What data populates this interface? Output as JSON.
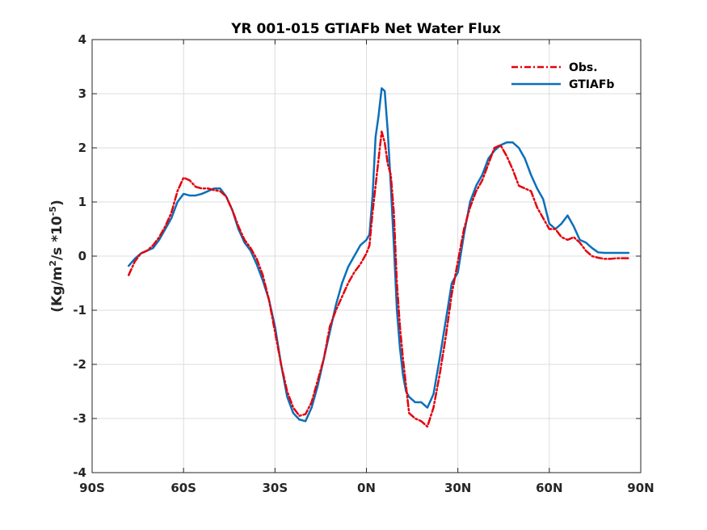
{
  "chart_data": {
    "type": "line",
    "title": "YR 001-015 GTIAFb  Net Water Flux",
    "ylabel_parts": [
      "(Kg/m",
      "2",
      "/s *10",
      "-5",
      ")"
    ],
    "xlabel": "",
    "xlim": [
      -90,
      90
    ],
    "ylim": [
      -4,
      4
    ],
    "grid": true,
    "legend_position": "top-right",
    "x_ticks": [
      -90,
      -60,
      -30,
      0,
      30,
      60,
      90
    ],
    "x_tick_labels": [
      "90S",
      "60S",
      "30S",
      "0N",
      "30N",
      "60N",
      "90N"
    ],
    "y_ticks": [
      -4,
      -3,
      -2,
      -1,
      0,
      1,
      2,
      3,
      4
    ],
    "y_tick_labels": [
      "-4",
      "-3",
      "-2",
      "-1",
      "0",
      "1",
      "2",
      "3",
      "4"
    ],
    "series": [
      {
        "name": "Obs.",
        "color": "#e6000a",
        "dash": "8,3,2,3",
        "x": [
          -78,
          -76,
          -74,
          -72,
          -70,
          -68,
          -66,
          -64,
          -62,
          -60,
          -58,
          -56,
          -54,
          -52,
          -50,
          -48,
          -46,
          -44,
          -42,
          -40,
          -38,
          -36,
          -34,
          -32,
          -30,
          -28,
          -26,
          -24,
          -22,
          -20,
          -18,
          -16,
          -14,
          -12,
          -10,
          -8,
          -6,
          -4,
          -2,
          0,
          1,
          2,
          3,
          4,
          5,
          6,
          7,
          8,
          9,
          10,
          11,
          12,
          13,
          14,
          16,
          18,
          20,
          22,
          24,
          26,
          28,
          30,
          32,
          34,
          36,
          38,
          40,
          42,
          44,
          46,
          48,
          50,
          52,
          54,
          56,
          58,
          60,
          62,
          64,
          66,
          68,
          70,
          72,
          74,
          76,
          78,
          80,
          82,
          84,
          86
        ],
        "y": [
          -0.35,
          -0.1,
          0.05,
          0.1,
          0.2,
          0.35,
          0.55,
          0.8,
          1.2,
          1.45,
          1.4,
          1.28,
          1.25,
          1.25,
          1.22,
          1.2,
          1.1,
          0.85,
          0.55,
          0.3,
          0.15,
          -0.05,
          -0.35,
          -0.8,
          -1.4,
          -2.0,
          -2.5,
          -2.8,
          -2.95,
          -2.92,
          -2.7,
          -2.3,
          -1.9,
          -1.3,
          -1.0,
          -0.75,
          -0.5,
          -0.3,
          -0.15,
          0.05,
          0.2,
          0.8,
          1.3,
          1.8,
          2.3,
          2.1,
          1.7,
          1.5,
          0.8,
          -0.5,
          -1.3,
          -1.9,
          -2.4,
          -2.9,
          -3.0,
          -3.05,
          -3.15,
          -2.8,
          -2.2,
          -1.5,
          -0.7,
          -0.1,
          0.5,
          0.9,
          1.2,
          1.4,
          1.7,
          2.0,
          2.05,
          1.85,
          1.6,
          1.3,
          1.25,
          1.2,
          0.9,
          0.7,
          0.5,
          0.5,
          0.35,
          0.3,
          0.35,
          0.25,
          0.1,
          0.0,
          -0.03,
          -0.05,
          -0.05,
          -0.04,
          -0.04,
          -0.04
        ]
      },
      {
        "name": "GTIAFb",
        "color": "#0b6fba",
        "dash": "",
        "x": [
          -78,
          -76,
          -74,
          -72,
          -70,
          -68,
          -66,
          -64,
          -62,
          -60,
          -58,
          -56,
          -54,
          -52,
          -50,
          -48,
          -46,
          -44,
          -42,
          -40,
          -38,
          -36,
          -34,
          -32,
          -30,
          -28,
          -26,
          -24,
          -22,
          -20,
          -18,
          -16,
          -14,
          -12,
          -10,
          -8,
          -6,
          -4,
          -2,
          0,
          1,
          2,
          3,
          4,
          5,
          6,
          7,
          8,
          9,
          10,
          11,
          12,
          13,
          14,
          16,
          18,
          20,
          22,
          24,
          26,
          28,
          30,
          32,
          34,
          36,
          38,
          40,
          42,
          44,
          46,
          48,
          50,
          52,
          54,
          56,
          58,
          60,
          62,
          64,
          66,
          68,
          70,
          72,
          74,
          76,
          78,
          80,
          82,
          84,
          86
        ],
        "y": [
          -0.18,
          -0.05,
          0.05,
          0.1,
          0.15,
          0.3,
          0.5,
          0.7,
          1.0,
          1.15,
          1.12,
          1.12,
          1.15,
          1.2,
          1.25,
          1.25,
          1.1,
          0.85,
          0.5,
          0.25,
          0.1,
          -0.15,
          -0.45,
          -0.8,
          -1.3,
          -2.0,
          -2.6,
          -2.9,
          -3.02,
          -3.05,
          -2.8,
          -2.4,
          -1.9,
          -1.4,
          -0.9,
          -0.5,
          -0.2,
          0.0,
          0.2,
          0.3,
          0.4,
          1.1,
          2.2,
          2.6,
          3.1,
          3.05,
          2.3,
          1.3,
          0.2,
          -1.0,
          -1.7,
          -2.2,
          -2.5,
          -2.6,
          -2.7,
          -2.7,
          -2.8,
          -2.55,
          -1.9,
          -1.2,
          -0.5,
          -0.3,
          0.4,
          1.0,
          1.3,
          1.5,
          1.8,
          1.95,
          2.05,
          2.1,
          2.1,
          2.0,
          1.8,
          1.5,
          1.25,
          1.05,
          0.6,
          0.5,
          0.6,
          0.75,
          0.55,
          0.3,
          0.25,
          0.15,
          0.07,
          0.06,
          0.06,
          0.06,
          0.06,
          0.06
        ]
      }
    ]
  }
}
